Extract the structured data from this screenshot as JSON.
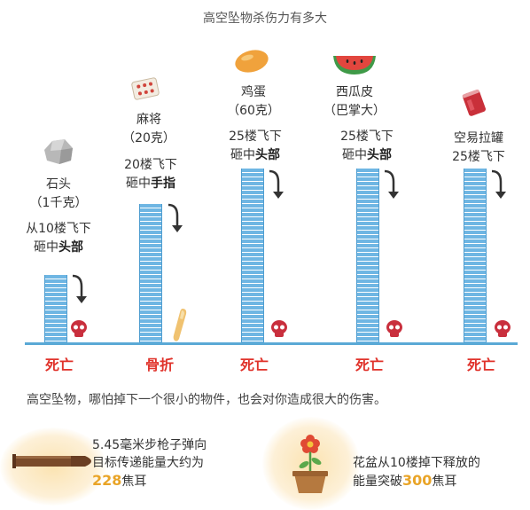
{
  "title": "高空坠物杀伤力有多大",
  "items": [
    {
      "name": "石头",
      "weight": "（1千克）",
      "cond_line1": "从10楼飞下",
      "cond_pre": "砸中",
      "cond_bold": "头部",
      "outcome": "死亡",
      "icon": "rock-icon"
    },
    {
      "name": "麻将",
      "weight": "（20克）",
      "cond_line1": "20楼飞下",
      "cond_pre": "砸中",
      "cond_bold": "手指",
      "outcome": "骨折",
      "icon": "mahjong-tile-icon"
    },
    {
      "name": "鸡蛋",
      "weight": "（60克）",
      "cond_line1": "25楼飞下",
      "cond_pre": "砸中",
      "cond_bold": "头部",
      "outcome": "死亡",
      "icon": "egg-icon"
    },
    {
      "name": "西瓜皮",
      "weight": "（巴掌大）",
      "cond_line1": "25楼飞下",
      "cond_pre": "砸中",
      "cond_bold": "头部",
      "outcome": "死亡",
      "icon": "watermelon-icon"
    },
    {
      "name": "",
      "weight": "",
      "cond_line1": "空易拉罐",
      "cond_pre": "25楼飞下",
      "cond_bold": "",
      "outcome": "死亡",
      "icon": "can-icon"
    }
  ],
  "note": "高空坠物，哪怕掉下一个很小的物件，也会对你造成很大的伤害。",
  "facts": {
    "bullet_line1": "5.45毫米步枪子弹向",
    "bullet_line2": "目标传递能量大约为",
    "bullet_value": "228",
    "bullet_unit": "焦耳",
    "pot_line1": "花盆从10楼掉下释放的",
    "pot_pre": "能量突破",
    "pot_value": "300",
    "pot_unit": "焦耳"
  },
  "colors": {
    "bar": "#6fb6e3",
    "danger": "#e0332b",
    "skull": "#c92f3d",
    "highlight": "#e9a427"
  }
}
